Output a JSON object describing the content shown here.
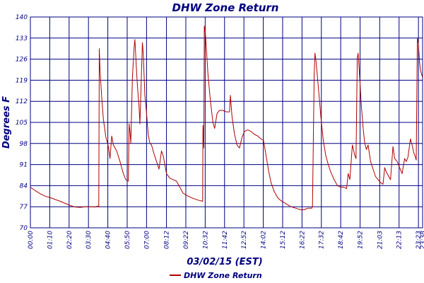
{
  "chart_data": {
    "type": "line",
    "title": "DHW Zone Return",
    "xlabel": "03/02/15 (EST)",
    "ylabel": "Degrees F",
    "ylim": [
      70,
      140
    ],
    "yticks": [
      70,
      77,
      84,
      91,
      98,
      105,
      112,
      119,
      126,
      133,
      140
    ],
    "x_tick_labels": [
      "00:00",
      "01:10",
      "02:20",
      "03:30",
      "04:40",
      "05:50",
      "07:00",
      "08:12",
      "09:22",
      "10:32",
      "11:42",
      "12:52",
      "14:02",
      "15:12",
      "16:22",
      "17:32",
      "18:42",
      "19:52",
      "21:03",
      "22:13",
      "23:23",
      "23:38"
    ],
    "x_tick_hours": [
      0,
      1.1667,
      2.3333,
      3.5,
      4.6667,
      5.8333,
      7.0,
      8.2,
      9.3667,
      10.5333,
      11.7,
      12.8667,
      14.0333,
      15.2,
      16.3667,
      17.5333,
      18.7,
      19.8667,
      21.05,
      22.2167,
      23.3833,
      23.6333
    ],
    "xlim_hours": [
      0,
      23.6333
    ],
    "grid": true,
    "legend_position": "bottom-center",
    "series": [
      {
        "name": "DHW Zone Return",
        "color": "#b00000",
        "points": [
          [
            0.0,
            83.5
          ],
          [
            0.3,
            82.3
          ],
          [
            0.6,
            81.3
          ],
          [
            0.9,
            80.5
          ],
          [
            1.2,
            80.0
          ],
          [
            1.5,
            79.4
          ],
          [
            1.8,
            78.8
          ],
          [
            2.1,
            78.1
          ],
          [
            2.4,
            77.4
          ],
          [
            2.7,
            76.9
          ],
          [
            3.0,
            76.8
          ],
          [
            3.3,
            77.0
          ],
          [
            3.6,
            77.0
          ],
          [
            3.9,
            76.9
          ],
          [
            4.05,
            77.2
          ],
          [
            4.12,
            77.0
          ],
          [
            4.15,
            129.5
          ],
          [
            4.2,
            122.0
          ],
          [
            4.3,
            113.0
          ],
          [
            4.4,
            106.0
          ],
          [
            4.55,
            100.0
          ],
          [
            4.7,
            97.0
          ],
          [
            4.8,
            93.0
          ],
          [
            4.9,
            100.5
          ],
          [
            5.0,
            97.5
          ],
          [
            5.2,
            95.5
          ],
          [
            5.4,
            92.0
          ],
          [
            5.6,
            88.0
          ],
          [
            5.75,
            86.0
          ],
          [
            5.9,
            85.5
          ],
          [
            5.95,
            104.5
          ],
          [
            6.0,
            102.0
          ],
          [
            6.05,
            98.0
          ],
          [
            6.15,
            120.0
          ],
          [
            6.25,
            130.0
          ],
          [
            6.3,
            132.5
          ],
          [
            6.38,
            124.0
          ],
          [
            6.45,
            117.0
          ],
          [
            6.55,
            110.0
          ],
          [
            6.6,
            104.5
          ],
          [
            6.68,
            119.0
          ],
          [
            6.75,
            131.5
          ],
          [
            6.8,
            128.0
          ],
          [
            6.9,
            114.0
          ],
          [
            7.0,
            108.0
          ],
          [
            7.1,
            101.0
          ],
          [
            7.2,
            98.0
          ],
          [
            7.3,
            97.5
          ],
          [
            7.45,
            94.5
          ],
          [
            7.6,
            92.0
          ],
          [
            7.75,
            89.5
          ],
          [
            7.9,
            95.5
          ],
          [
            8.0,
            94.0
          ],
          [
            8.2,
            88.0
          ],
          [
            8.4,
            86.5
          ],
          [
            8.6,
            86.0
          ],
          [
            8.8,
            85.5
          ],
          [
            9.0,
            83.5
          ],
          [
            9.2,
            81.5
          ],
          [
            9.5,
            80.5
          ],
          [
            9.8,
            79.8
          ],
          [
            10.1,
            79.2
          ],
          [
            10.38,
            78.8
          ],
          [
            10.4,
            104.0
          ],
          [
            10.45,
            96.5
          ],
          [
            10.48,
            137.0
          ],
          [
            10.55,
            134.0
          ],
          [
            10.7,
            121.0
          ],
          [
            10.85,
            112.0
          ],
          [
            11.0,
            105.0
          ],
          [
            11.1,
            103.0
          ],
          [
            11.25,
            108.0
          ],
          [
            11.4,
            109.0
          ],
          [
            11.6,
            109.0
          ],
          [
            11.8,
            108.5
          ],
          [
            12.0,
            108.5
          ],
          [
            12.05,
            114.0
          ],
          [
            12.15,
            107.0
          ],
          [
            12.3,
            101.0
          ],
          [
            12.45,
            97.5
          ],
          [
            12.6,
            96.5
          ],
          [
            12.75,
            100.0
          ],
          [
            12.9,
            102.0
          ],
          [
            13.1,
            102.5
          ],
          [
            13.3,
            102.0
          ],
          [
            13.5,
            101.0
          ],
          [
            13.7,
            100.5
          ],
          [
            13.9,
            99.5
          ],
          [
            14.05,
            99.0
          ],
          [
            14.2,
            94.0
          ],
          [
            14.35,
            89.0
          ],
          [
            14.5,
            85.0
          ],
          [
            14.7,
            82.0
          ],
          [
            14.9,
            80.0
          ],
          [
            15.1,
            79.0
          ],
          [
            15.4,
            78.0
          ],
          [
            15.7,
            77.0
          ],
          [
            16.0,
            76.5
          ],
          [
            16.3,
            76.0
          ],
          [
            16.5,
            76.0
          ],
          [
            16.7,
            76.5
          ],
          [
            16.95,
            76.5
          ],
          [
            17.0,
            77.0
          ],
          [
            17.1,
            121.0
          ],
          [
            17.15,
            128.0
          ],
          [
            17.2,
            126.0
          ],
          [
            17.35,
            117.0
          ],
          [
            17.5,
            107.0
          ],
          [
            17.65,
            99.0
          ],
          [
            17.8,
            94.0
          ],
          [
            17.95,
            91.0
          ],
          [
            18.1,
            88.5
          ],
          [
            18.3,
            86.0
          ],
          [
            18.5,
            84.0
          ],
          [
            18.7,
            83.5
          ],
          [
            18.9,
            83.5
          ],
          [
            19.05,
            83.0
          ],
          [
            19.15,
            88.0
          ],
          [
            19.25,
            86.0
          ],
          [
            19.4,
            97.5
          ],
          [
            19.55,
            94.0
          ],
          [
            19.62,
            93.0
          ],
          [
            19.7,
            126.5
          ],
          [
            19.75,
            128.0
          ],
          [
            19.85,
            119.0
          ],
          [
            19.95,
            110.0
          ],
          [
            20.05,
            103.0
          ],
          [
            20.15,
            98.0
          ],
          [
            20.25,
            96.0
          ],
          [
            20.35,
            97.5
          ],
          [
            20.5,
            92.0
          ],
          [
            20.65,
            89.5
          ],
          [
            20.8,
            87.0
          ],
          [
            20.95,
            86.0
          ],
          [
            21.1,
            85.0
          ],
          [
            21.25,
            84.5
          ],
          [
            21.35,
            90.0
          ],
          [
            21.45,
            88.5
          ],
          [
            21.55,
            87.5
          ],
          [
            21.7,
            86.0
          ],
          [
            21.85,
            97.0
          ],
          [
            21.95,
            93.0
          ],
          [
            22.1,
            92.0
          ],
          [
            22.25,
            90.0
          ],
          [
            22.4,
            88.0
          ],
          [
            22.55,
            93.0
          ],
          [
            22.65,
            92.0
          ],
          [
            22.75,
            93.5
          ],
          [
            22.9,
            99.5
          ],
          [
            23.0,
            97.5
          ],
          [
            23.1,
            95.0
          ],
          [
            23.2,
            93.5
          ],
          [
            23.25,
            92.5
          ],
          [
            23.32,
            133.0
          ],
          [
            23.38,
            131.0
          ],
          [
            23.45,
            125.0
          ],
          [
            23.52,
            122.0
          ],
          [
            23.63,
            120.0
          ]
        ]
      }
    ]
  }
}
